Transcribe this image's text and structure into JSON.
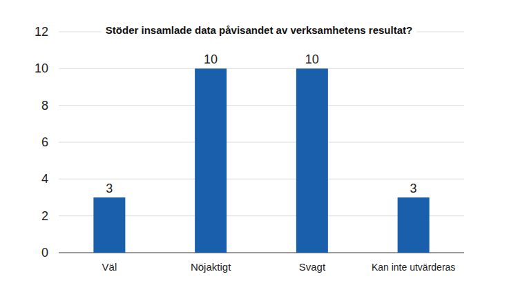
{
  "chart_data": {
    "type": "bar",
    "title": "Stöder insamlade data påvisandet av verksamhetens resultat?",
    "categories": [
      "Väl",
      "Nöjaktigt",
      "Svagt",
      "Kan inte utvärderas"
    ],
    "values": [
      3,
      10,
      10,
      3
    ],
    "color": "#1a5fac",
    "ylim": [
      0,
      12
    ],
    "yticks": [
      0,
      2,
      4,
      6,
      8,
      10,
      12
    ],
    "grid": true,
    "data_labels": true
  }
}
